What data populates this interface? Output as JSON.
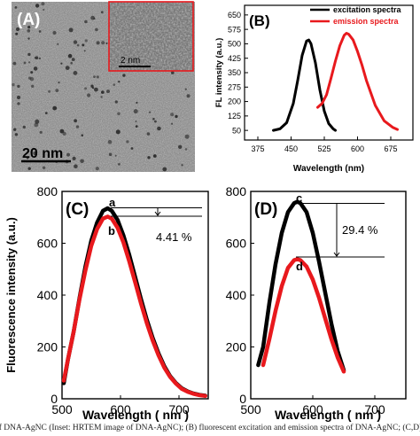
{
  "panelA": {
    "label": "(A)",
    "scale_bar": "20 nm",
    "inset_scale_bar": "2 nm"
  },
  "chart_data": [
    {
      "panel": "(B)",
      "type": "line",
      "xlabel": "Wavelength (nm)",
      "ylabel": "FL intensity (a.u.)",
      "xlim": [
        345,
        725
      ],
      "ylim": [
        0,
        700
      ],
      "xticks": [
        375,
        450,
        525,
        600,
        675
      ],
      "yticks": [
        50,
        125,
        200,
        275,
        350,
        425,
        500,
        575,
        650
      ],
      "legend_placement": "top-right",
      "series": [
        {
          "name": "excitation spectra",
          "color": "#000000",
          "x": [
            410,
            425,
            440,
            455,
            465,
            475,
            485,
            490,
            495,
            505,
            515,
            525,
            535,
            545,
            550
          ],
          "y": [
            50,
            58,
            90,
            190,
            310,
            440,
            515,
            520,
            500,
            400,
            260,
            150,
            85,
            58,
            50
          ]
        },
        {
          "name": "emission spectra",
          "color": "#e8191d",
          "x": [
            510,
            520,
            530,
            540,
            550,
            560,
            570,
            575,
            580,
            590,
            600,
            610,
            620,
            640,
            660,
            680,
            690
          ],
          "y": [
            170,
            190,
            235,
            320,
            410,
            490,
            545,
            555,
            550,
            520,
            460,
            390,
            310,
            180,
            100,
            65,
            55
          ]
        }
      ]
    },
    {
      "panel": "(C)",
      "type": "line",
      "xlabel": "Wavelength ( nm )",
      "ylabel": "Fluorescence intensity (a.u.)",
      "xlim": [
        500,
        750
      ],
      "ylim": [
        0,
        800
      ],
      "xticks": [
        500,
        600,
        700
      ],
      "yticks": [
        0,
        200,
        400,
        600,
        800
      ],
      "annotation": "4.41 %",
      "curve_labels": [
        "a",
        "b"
      ],
      "series": [
        {
          "name": "a",
          "color": "#000000",
          "x": [
            503,
            510,
            520,
            530,
            540,
            550,
            560,
            570,
            578,
            585,
            595,
            605,
            615,
            625,
            635,
            645,
            655,
            665,
            675,
            685,
            695,
            705,
            715,
            725,
            735,
            745
          ],
          "y": [
            60,
            150,
            260,
            390,
            510,
            610,
            680,
            725,
            735,
            725,
            690,
            630,
            555,
            470,
            385,
            305,
            235,
            175,
            125,
            87,
            60,
            40,
            28,
            20,
            15,
            12
          ]
        },
        {
          "name": "b",
          "color": "#e8191d",
          "x": [
            503,
            510,
            520,
            530,
            540,
            550,
            560,
            570,
            578,
            585,
            595,
            605,
            615,
            625,
            635,
            645,
            655,
            665,
            675,
            685,
            695,
            705,
            715,
            725,
            735,
            745
          ],
          "y": [
            70,
            150,
            260,
            385,
            495,
            590,
            655,
            695,
            703,
            695,
            660,
            603,
            530,
            450,
            368,
            292,
            225,
            168,
            120,
            84,
            58,
            38,
            27,
            19,
            14,
            11
          ]
        }
      ]
    },
    {
      "panel": "(D)",
      "type": "line",
      "xlabel": "Wavelength ( nm )",
      "xlim": [
        500,
        750
      ],
      "ylim": [
        0,
        800
      ],
      "xticks": [
        500,
        600,
        700
      ],
      "yticks": [
        0,
        200,
        400,
        600,
        800
      ],
      "annotation": "29.4 %",
      "curve_labels": [
        "c",
        "d"
      ],
      "series": [
        {
          "name": "c",
          "color": "#000000",
          "x": [
            512,
            520,
            530,
            540,
            550,
            560,
            570,
            575,
            580,
            590,
            600,
            610,
            620,
            630,
            640,
            650
          ],
          "y": [
            130,
            200,
            370,
            520,
            640,
            720,
            755,
            760,
            755,
            720,
            640,
            530,
            410,
            290,
            185,
            110
          ]
        },
        {
          "name": "d",
          "color": "#e8191d",
          "x": [
            520,
            530,
            540,
            550,
            560,
            570,
            575,
            580,
            590,
            600,
            610,
            620,
            630,
            640,
            650
          ],
          "y": [
            130,
            230,
            340,
            435,
            505,
            535,
            538,
            535,
            510,
            460,
            390,
            310,
            230,
            160,
            105
          ]
        }
      ]
    }
  ],
  "caption": "of DNA-AgNC (Inset: HRTEM image of DNA-AgNC); (B) fluorescent excitation and emission spectra of DNA-AgNC; (C,D) fluorescence"
}
